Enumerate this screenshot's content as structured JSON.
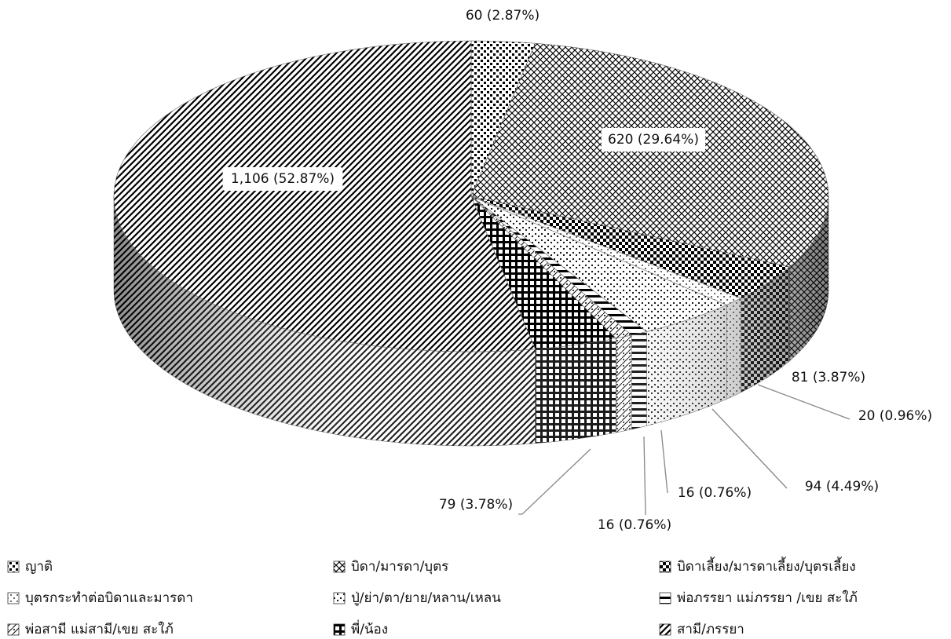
{
  "chart_data": {
    "type": "pie",
    "categories": [
      "ญาติ",
      "บิดา/มารดา/บุตร",
      "บิดาเลี้ยง/มารดาเลี้ยง/บุตรเลี้ยง",
      "บุตรกระทำต่อบิดาและมารดา",
      "ปู่/ย่า/ตา/ยาย/หลาน/เหลน",
      "พ่อภรรยา แม่ภรรยา /เขย สะใภ้",
      "พ่อสามี แม่สามี/เขย สะใภ้",
      "พี่/น้อง",
      "สามี/ภรรยา"
    ],
    "values": [
      60,
      620,
      81,
      20,
      94,
      16,
      16,
      79,
      1106
    ],
    "value_labels": [
      "60 (2.87%)",
      "620 (29.64%)",
      "81 (3.87%)",
      "20 (0.96%)",
      "94 (4.49%)",
      "16 (0.76%)",
      "16 (0.76%)",
      "79 (3.78%)",
      "1,106 (52.87%)"
    ],
    "colors": [
      "#000000",
      "#000000",
      "#000000",
      "#000000",
      "#000000",
      "#000000",
      "#000000",
      "#000000",
      "#000000"
    ],
    "legend": "bottom"
  }
}
